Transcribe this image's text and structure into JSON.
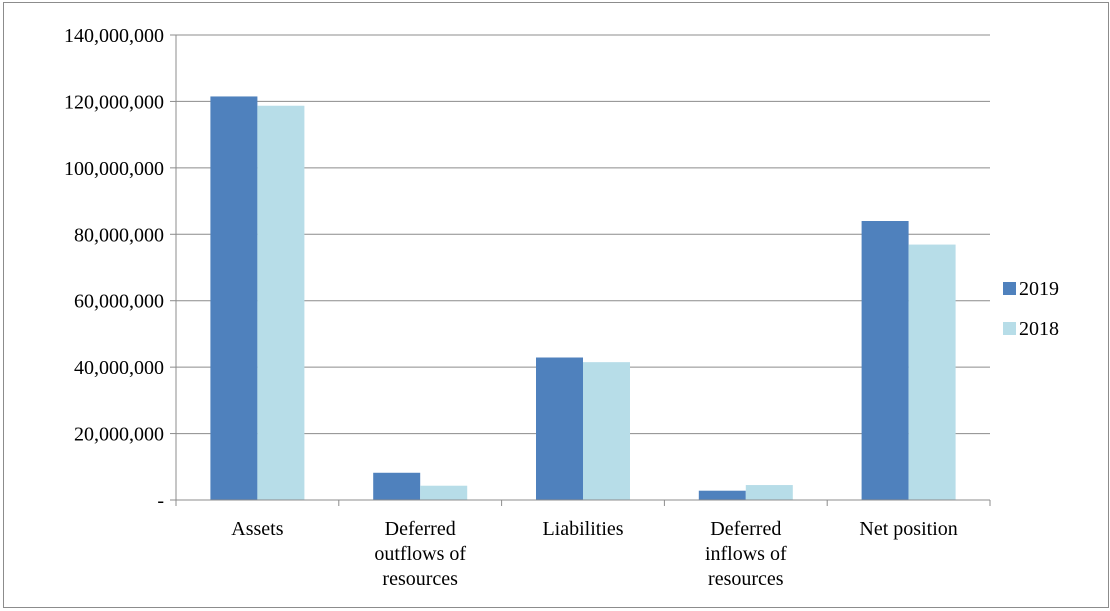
{
  "chart_data": {
    "type": "bar",
    "categories": [
      [
        "Assets"
      ],
      [
        "Deferred",
        "outflows of",
        "resources"
      ],
      [
        "Liabilities"
      ],
      [
        "Deferred",
        "inflows of",
        "resources"
      ],
      [
        "Net position"
      ]
    ],
    "series": [
      {
        "name": "2019",
        "color": "#4f81bd",
        "values": [
          121500000,
          8200000,
          42900000,
          2800000,
          84000000
        ]
      },
      {
        "name": "2018",
        "color": "#b7dde8",
        "values": [
          118700000,
          4300000,
          41500000,
          4500000,
          76900000
        ]
      }
    ],
    "ylim": [
      0,
      140000000
    ],
    "yticks": [
      {
        "value": 0,
        "label": "-"
      },
      {
        "value": 20000000,
        "label": "20,000,000"
      },
      {
        "value": 40000000,
        "label": "40,000,000"
      },
      {
        "value": 60000000,
        "label": "60,000,000"
      },
      {
        "value": 80000000,
        "label": "80,000,000"
      },
      {
        "value": 100000000,
        "label": "100,000,000"
      },
      {
        "value": 120000000,
        "label": "120,000,000"
      },
      {
        "value": 140000000,
        "label": "140,000,000"
      }
    ],
    "grid": true,
    "legend_position": "right"
  }
}
